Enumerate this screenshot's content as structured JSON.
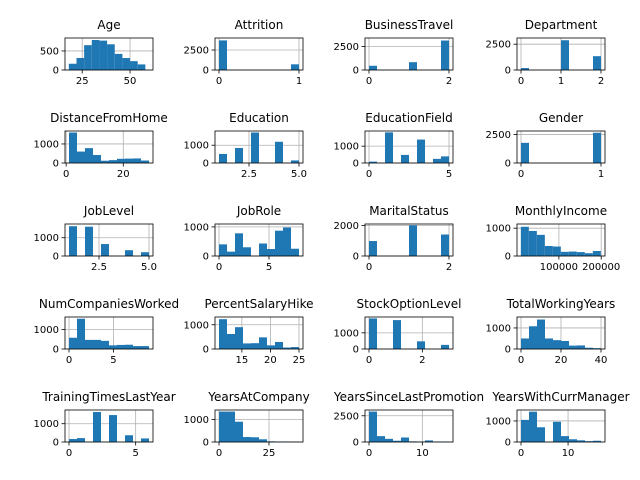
{
  "figure": {
    "background": "#ffffff",
    "bar_color": "#1f77b4",
    "grid_color": "#b0b0b0"
  },
  "chart_data": [
    {
      "type": "bar",
      "title": "Age",
      "grid": true,
      "xlim": [
        16,
        62
      ],
      "ylim": [
        0,
        840
      ],
      "bins": [
        [
          18,
          22,
          164
        ],
        [
          22,
          26,
          315
        ],
        [
          26,
          30,
          652
        ],
        [
          30,
          34,
          788
        ],
        [
          34,
          38,
          771
        ],
        [
          38,
          42,
          675
        ],
        [
          42,
          46,
          423
        ],
        [
          46,
          50,
          314
        ],
        [
          50,
          54,
          232
        ],
        [
          54,
          58,
          147
        ]
      ],
      "xticks": [
        25,
        50
      ],
      "xtick_labels": [
        "25",
        "50"
      ],
      "yticks": [
        0,
        500
      ],
      "ytick_labels": [
        "0",
        "500"
      ]
    },
    {
      "type": "bar",
      "title": "Attrition",
      "grid": true,
      "xlim": [
        -0.05,
        1.05
      ],
      "ylim": [
        0,
        4000
      ],
      "bins": [
        [
          0,
          0.1,
          3700
        ],
        [
          0.9,
          1.0,
          711
        ]
      ],
      "xticks": [
        0,
        1
      ],
      "xtick_labels": [
        "0",
        "1"
      ],
      "yticks": [
        0,
        2500
      ],
      "ytick_labels": [
        "0",
        "2500"
      ]
    },
    {
      "type": "bar",
      "title": "BusinessTravel",
      "grid": true,
      "xlim": [
        -0.1,
        2.1
      ],
      "ylim": [
        0,
        3400
      ],
      "bins": [
        [
          0,
          0.2,
          450
        ],
        [
          1.0,
          1.2,
          830
        ],
        [
          1.8,
          2.0,
          3130
        ]
      ],
      "xticks": [
        0,
        2
      ],
      "xtick_labels": [
        "0",
        "2"
      ],
      "yticks": [
        0,
        2500
      ],
      "ytick_labels": [
        "0",
        "2500"
      ]
    },
    {
      "type": "bar",
      "title": "Department",
      "grid": true,
      "xlim": [
        -0.1,
        2.1
      ],
      "ylim": [
        0,
        3100
      ],
      "bins": [
        [
          0,
          0.2,
          189
        ],
        [
          1.0,
          1.2,
          2883
        ],
        [
          1.8,
          2.0,
          1338
        ]
      ],
      "xticks": [
        0,
        1,
        2
      ],
      "xtick_labels": [
        "0",
        "1",
        "2"
      ],
      "yticks": [
        0,
        2500
      ],
      "ytick_labels": [
        "0",
        "2500"
      ]
    },
    {
      "type": "bar",
      "title": "DistanceFromHome",
      "grid": true,
      "xlim": [
        -0.4,
        30.4
      ],
      "ylim": [
        0,
        1680
      ],
      "bins": [
        [
          1,
          3.8,
          1600
        ],
        [
          3.8,
          6.6,
          600
        ],
        [
          6.6,
          9.4,
          780
        ],
        [
          9.4,
          12.2,
          420
        ],
        [
          12.2,
          15,
          120
        ],
        [
          15,
          17.8,
          150
        ],
        [
          17.8,
          20.6,
          220
        ],
        [
          20.6,
          23.4,
          230
        ],
        [
          23.4,
          26.2,
          240
        ],
        [
          26.2,
          29,
          130
        ]
      ],
      "xticks": [
        0,
        20
      ],
      "xtick_labels": [
        "0",
        "20"
      ],
      "yticks": [
        0,
        1000
      ],
      "ytick_labels": [
        "0",
        "1000"
      ]
    },
    {
      "type": "bar",
      "title": "Education",
      "grid": true,
      "xlim": [
        0.8,
        5.2
      ],
      "ylim": [
        0,
        1800
      ],
      "bins": [
        [
          1,
          1.4,
          510
        ],
        [
          1.8,
          2.2,
          846
        ],
        [
          2.6,
          3.0,
          1716
        ],
        [
          3.4,
          3.8,
          0
        ],
        [
          3.8,
          4.2,
          1194
        ],
        [
          4.6,
          5.0,
          144
        ]
      ],
      "xticks": [
        2.5,
        5.0
      ],
      "xtick_labels": [
        "2.5",
        "5.0"
      ],
      "yticks": [
        0,
        1000
      ],
      "ytick_labels": [
        "0",
        "1000"
      ]
    },
    {
      "type": "bar",
      "title": "EducationField",
      "grid": true,
      "xlim": [
        -0.25,
        5.25
      ],
      "ylim": [
        0,
        1900
      ],
      "bins": [
        [
          0,
          0.5,
          81
        ],
        [
          1.0,
          1.5,
          1818
        ],
        [
          2.0,
          2.5,
          480
        ],
        [
          3.0,
          3.5,
          1392
        ],
        [
          4.0,
          4.5,
          246
        ],
        [
          4.5,
          5.0,
          393
        ]
      ],
      "xticks": [
        0,
        5
      ],
      "xtick_labels": [
        "0",
        "5"
      ],
      "yticks": [
        0,
        1000
      ],
      "ytick_labels": [
        "0",
        "1000"
      ]
    },
    {
      "type": "bar",
      "title": "Gender",
      "grid": true,
      "xlim": [
        -0.05,
        1.05
      ],
      "ylim": [
        0,
        2800
      ],
      "bins": [
        [
          0,
          0.1,
          1764
        ],
        [
          0.9,
          1.0,
          2646
        ]
      ],
      "xticks": [
        0,
        1
      ],
      "xtick_labels": [
        "0",
        "1"
      ],
      "yticks": [
        0,
        2500
      ],
      "ytick_labels": [
        "0",
        "2500"
      ]
    },
    {
      "type": "bar",
      "title": "JobLevel",
      "grid": true,
      "xlim": [
        0.8,
        5.2
      ],
      "ylim": [
        0,
        1750
      ],
      "bins": [
        [
          1,
          1.4,
          1629
        ],
        [
          1.8,
          2.2,
          1602
        ],
        [
          2.6,
          3.0,
          654
        ],
        [
          3.4,
          3.8,
          0
        ],
        [
          3.8,
          4.2,
          318
        ],
        [
          4.6,
          5.0,
          207
        ]
      ],
      "xticks": [
        2.5,
        5.0
      ],
      "xtick_labels": [
        "2.5",
        "5.0"
      ],
      "yticks": [
        0,
        1000
      ],
      "ytick_labels": [
        "0",
        "1000"
      ]
    },
    {
      "type": "bar",
      "title": "JobRole",
      "grid": true,
      "xlim": [
        -0.4,
        8.4
      ],
      "ylim": [
        0,
        1100
      ],
      "bins": [
        [
          0,
          0.8,
          400
        ],
        [
          0.8,
          1.6,
          150
        ],
        [
          1.6,
          2.4,
          780
        ],
        [
          2.4,
          3.2,
          300
        ],
        [
          3.2,
          4.0,
          0
        ],
        [
          4.0,
          4.8,
          430
        ],
        [
          4.8,
          5.6,
          240
        ],
        [
          5.6,
          6.4,
          870
        ],
        [
          6.4,
          7.2,
          980
        ],
        [
          7.2,
          8.0,
          250
        ]
      ],
      "xticks": [
        0,
        5
      ],
      "xtick_labels": [
        "0",
        "5"
      ],
      "yticks": [
        0,
        1000
      ],
      "ytick_labels": [
        "0",
        "1000"
      ]
    },
    {
      "type": "bar",
      "title": "MaritalStatus",
      "grid": true,
      "xlim": [
        -0.1,
        2.1
      ],
      "ylim": [
        0,
        2100
      ],
      "bins": [
        [
          0,
          0.2,
          981
        ],
        [
          1.0,
          1.2,
          2019
        ],
        [
          1.8,
          2.0,
          1410
        ]
      ],
      "xticks": [
        0,
        2
      ],
      "xtick_labels": [
        "0",
        "2"
      ],
      "yticks": [
        0,
        2000
      ],
      "ytick_labels": [
        "0",
        "2000"
      ]
    },
    {
      "type": "bar",
      "title": "MonthlyIncome",
      "grid": true,
      "xlim": [
        1000,
        209000
      ],
      "ylim": [
        0,
        1150
      ],
      "bins": [
        [
          10090,
          29000,
          1050
        ],
        [
          29000,
          47900,
          900
        ],
        [
          47900,
          66800,
          760
        ],
        [
          66800,
          85700,
          360
        ],
        [
          85700,
          104600,
          340
        ],
        [
          104600,
          123500,
          150
        ],
        [
          123500,
          142400,
          160
        ],
        [
          142400,
          161300,
          140
        ],
        [
          161300,
          180200,
          100
        ],
        [
          180200,
          199100,
          180
        ]
      ],
      "xticks": [
        100000,
        200000
      ],
      "xtick_labels": [
        "100000",
        "200000"
      ],
      "yticks": [
        0,
        1000
      ],
      "ytick_labels": [
        "0",
        "1000"
      ]
    },
    {
      "type": "bar",
      "title": "NumCompaniesWorked",
      "grid": true,
      "xlim": [
        -0.45,
        9.45
      ],
      "ylim": [
        0,
        1650
      ],
      "bins": [
        [
          0,
          0.9,
          580
        ],
        [
          0.9,
          1.8,
          1560
        ],
        [
          1.8,
          2.7,
          0
        ],
        [
          1.8,
          2.7,
          470
        ],
        [
          2.7,
          3.6,
          470
        ],
        [
          3.6,
          4.5,
          420
        ],
        [
          4.5,
          5.4,
          190
        ],
        [
          5.4,
          6.3,
          210
        ],
        [
          6.3,
          7.2,
          220
        ],
        [
          7.2,
          8.1,
          150
        ],
        [
          8.1,
          9.0,
          150
        ]
      ],
      "xticks": [
        0,
        5
      ],
      "xtick_labels": [
        "0",
        "5"
      ],
      "yticks": [
        0,
        1000
      ],
      "ytick_labels": [
        "0",
        "1000"
      ]
    },
    {
      "type": "bar",
      "title": "PercentSalaryHike",
      "grid": true,
      "xlim": [
        10.3,
        25.7
      ],
      "ylim": [
        0,
        1320
      ],
      "bins": [
        [
          11,
          12.4,
          1230
        ],
        [
          12.4,
          13.8,
          620
        ],
        [
          13.8,
          15.2,
          900
        ],
        [
          15.2,
          16.6,
          230
        ],
        [
          16.6,
          18,
          240
        ],
        [
          18,
          19.4,
          480
        ],
        [
          19.4,
          20.8,
          150
        ],
        [
          20.8,
          22.2,
          290
        ],
        [
          22.2,
          23.6,
          60
        ],
        [
          23.6,
          25,
          80
        ]
      ],
      "xticks": [
        15,
        20,
        25
      ],
      "xtick_labels": [
        "15",
        "20",
        "25"
      ],
      "yticks": [
        0,
        1000
      ],
      "ytick_labels": [
        "0",
        "1000"
      ]
    },
    {
      "type": "bar",
      "title": "StockOptionLevel",
      "grid": true,
      "xlim": [
        -0.15,
        3.15
      ],
      "ylim": [
        0,
        1980
      ],
      "bins": [
        [
          0,
          0.3,
          1893
        ],
        [
          0.9,
          1.2,
          1788
        ],
        [
          1.8,
          2.1,
          474
        ],
        [
          2.7,
          3.0,
          255
        ]
      ],
      "xticks": [
        0,
        2
      ],
      "xtick_labels": [
        "0",
        "2"
      ],
      "yticks": [
        0,
        1000
      ],
      "ytick_labels": [
        "0",
        "1000"
      ]
    },
    {
      "type": "bar",
      "title": "TotalWorkingYears",
      "grid": true,
      "xlim": [
        -2,
        42
      ],
      "ylim": [
        0,
        1520
      ],
      "bins": [
        [
          0,
          4,
          500
        ],
        [
          4,
          8,
          1080
        ],
        [
          8,
          12,
          1400
        ],
        [
          12,
          16,
          500
        ],
        [
          16,
          20,
          420
        ],
        [
          20,
          24,
          380
        ],
        [
          24,
          28,
          160
        ],
        [
          28,
          32,
          170
        ],
        [
          32,
          36,
          60
        ],
        [
          36,
          40,
          40
        ]
      ],
      "xticks": [
        0,
        20,
        40
      ],
      "xtick_labels": [
        "0",
        "20",
        "40"
      ],
      "yticks": [
        0,
        1000
      ],
      "ytick_labels": [
        "0",
        "1000"
      ]
    },
    {
      "type": "bar",
      "title": "TrainingTimesLastYear",
      "grid": true,
      "xlim": [
        -0.3,
        6.3
      ],
      "ylim": [
        0,
        1750
      ],
      "bins": [
        [
          0,
          0.6,
          162
        ],
        [
          0.6,
          1.2,
          213
        ],
        [
          1.8,
          2.4,
          1641
        ],
        [
          2.4,
          3.0,
          0
        ],
        [
          3.0,
          3.6,
          1473
        ],
        [
          3.6,
          4.2,
          0
        ],
        [
          4.2,
          4.8,
          0
        ],
        [
          4.2,
          4.8,
          369
        ],
        [
          5.4,
          6.0,
          195
        ]
      ],
      "xticks": [
        0,
        5
      ],
      "xtick_labels": [
        "0",
        "5"
      ],
      "yticks": [
        0,
        1000
      ],
      "ytick_labels": [
        "0",
        "1000"
      ]
    },
    {
      "type": "bar",
      "title": "YearsAtCompany",
      "grid": true,
      "xlim": [
        -2,
        42
      ],
      "ylim": [
        0,
        1420
      ],
      "bins": [
        [
          0,
          4,
          1350
        ],
        [
          4,
          8,
          1350
        ],
        [
          8,
          12,
          900
        ],
        [
          12,
          16,
          220
        ],
        [
          16,
          20,
          210
        ],
        [
          20,
          24,
          120
        ],
        [
          24,
          28,
          30
        ],
        [
          28,
          32,
          20
        ],
        [
          32,
          36,
          20
        ],
        [
          36,
          40,
          10
        ]
      ],
      "xticks": [
        0,
        25
      ],
      "xtick_labels": [
        "0",
        "25"
      ],
      "yticks": [
        0,
        1000
      ],
      "ytick_labels": [
        "0",
        "1000"
      ]
    },
    {
      "type": "bar",
      "title": "YearsSinceLastPromotion",
      "grid": true,
      "xlim": [
        -0.75,
        15.75
      ],
      "ylim": [
        0,
        3050
      ],
      "bins": [
        [
          0,
          1.5,
          2900
        ],
        [
          1.5,
          3,
          560
        ],
        [
          3,
          4.5,
          300
        ],
        [
          4.5,
          6,
          120
        ],
        [
          6,
          7.5,
          430
        ],
        [
          7.5,
          9,
          60
        ],
        [
          9,
          10.5,
          30
        ],
        [
          10.5,
          12,
          150
        ],
        [
          12,
          13.5,
          40
        ],
        [
          13.5,
          15,
          40
        ]
      ],
      "xticks": [
        0,
        10
      ],
      "xtick_labels": [
        "0",
        "10"
      ],
      "yticks": [
        0,
        2500
      ],
      "ytick_labels": [
        "0",
        "2500"
      ]
    },
    {
      "type": "bar",
      "title": "YearsWithCurrManager",
      "grid": true,
      "xlim": [
        -0.85,
        17.85
      ],
      "ylim": [
        0,
        1520
      ],
      "bins": [
        [
          0,
          1.7,
          1050
        ],
        [
          1.7,
          3.4,
          1440
        ],
        [
          3.4,
          5.1,
          700
        ],
        [
          5.1,
          6.8,
          0
        ],
        [
          6.8,
          8.5,
          960
        ],
        [
          8.5,
          10.2,
          280
        ],
        [
          10.2,
          11.9,
          130
        ],
        [
          11.9,
          13.6,
          80
        ],
        [
          13.6,
          15.3,
          40
        ],
        [
          15.3,
          17,
          60
        ]
      ],
      "xticks": [
        0,
        10
      ],
      "xtick_labels": [
        "0",
        "10"
      ],
      "yticks": [
        0,
        1000
      ],
      "ytick_labels": [
        "0",
        "1000"
      ]
    }
  ]
}
